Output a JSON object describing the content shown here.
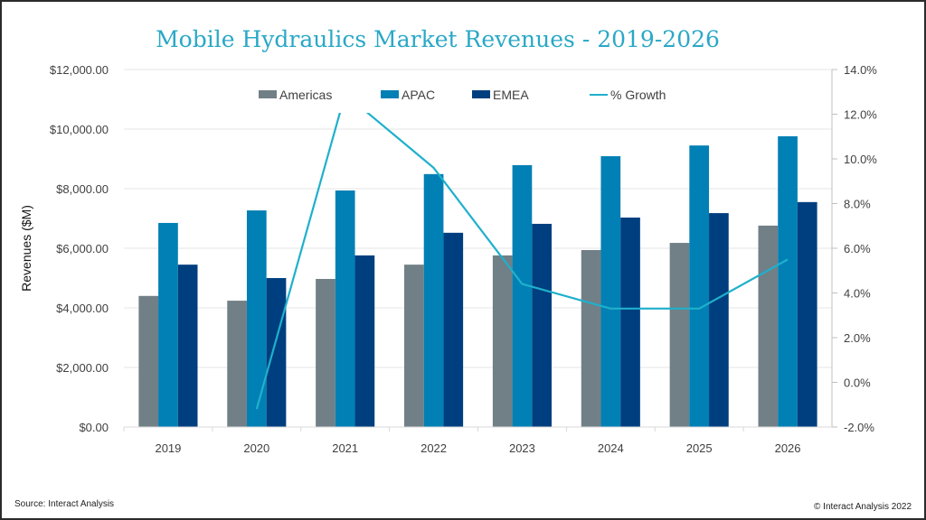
{
  "chart_data": {
    "type": "bar",
    "title": "Mobile Hydraulics Market Revenues - 2019-2026",
    "ylabel": "Revenues ($M)",
    "xlabel": "",
    "categories": [
      "2019",
      "2020",
      "2021",
      "2022",
      "2023",
      "2024",
      "2025",
      "2026"
    ],
    "ylim": [
      0,
      12000
    ],
    "y_ticks": [
      "$0.00",
      "$2,000.00",
      "$4,000.00",
      "$6,000.00",
      "$8,000.00",
      "$10,000.00",
      "$12,000.00"
    ],
    "y2lim": [
      -2,
      14
    ],
    "y2_ticks": [
      "-2.0%",
      "0.0%",
      "2.0%",
      "4.0%",
      "6.0%",
      "8.0%",
      "10.0%",
      "12.0%",
      "14.0%"
    ],
    "grid": true,
    "legend_position": "top",
    "series": [
      {
        "name": "Americas",
        "type": "bar",
        "color": "#717f87",
        "values": [
          4400,
          4240,
          4970,
          5450,
          5760,
          5940,
          6180,
          6760
        ]
      },
      {
        "name": "APAC",
        "type": "bar",
        "color": "#0080b4",
        "values": [
          6850,
          7270,
          7940,
          8490,
          8790,
          9090,
          9450,
          9760
        ]
      },
      {
        "name": "EMEA",
        "type": "bar",
        "color": "#003f7f",
        "values": [
          5450,
          5000,
          5760,
          6520,
          6820,
          7030,
          7180,
          7550
        ]
      },
      {
        "name": "% Growth",
        "type": "line",
        "axis": "right",
        "color": "#1fb0cc",
        "values": [
          null,
          -1.2,
          12.9,
          9.6,
          4.4,
          3.3,
          3.3,
          5.5
        ]
      }
    ]
  },
  "footer": {
    "source": "Source: Interact Analysis",
    "copyright": "© Interact Analysis 2022"
  }
}
